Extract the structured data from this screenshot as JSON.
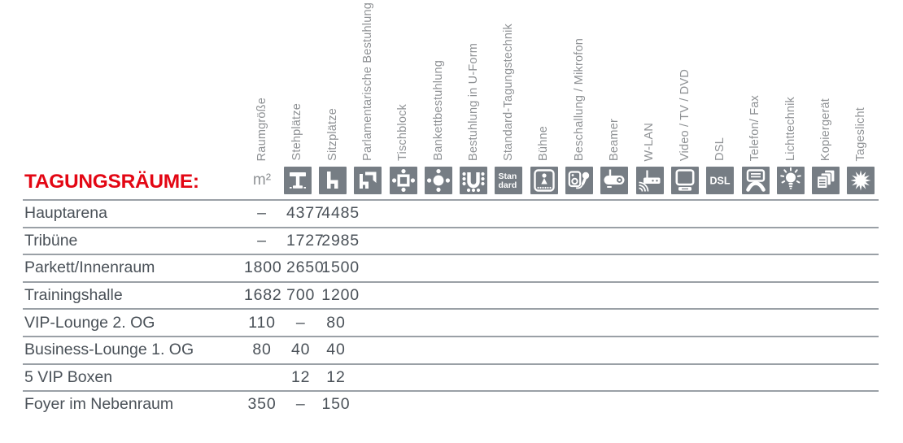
{
  "title": "TAGUNGSRÄUME:",
  "table": {
    "unit_header": "m²",
    "columns": [
      {
        "label": "Raumgröße",
        "icon": "area-unit"
      },
      {
        "label": "Stehplätze",
        "icon": "standing-table"
      },
      {
        "label": "Sitzplätze",
        "icon": "chair"
      },
      {
        "label": "Parlamentarische Bestuhlung",
        "icon": "chair-desk"
      },
      {
        "label": "Tischblock",
        "icon": "table-block"
      },
      {
        "label": "Bankettbestuhlung",
        "icon": "banquet-table"
      },
      {
        "label": "Bestuhlung in U-Form",
        "icon": "u-form"
      },
      {
        "label": "Standard-Tagungstechnik",
        "icon": "standard-badge",
        "icon_text_line1": "Stan",
        "icon_text_line2": "dard"
      },
      {
        "label": "Bühne",
        "icon": "stage"
      },
      {
        "label": "Beschallung / Mikrofon",
        "icon": "speaker-microphone"
      },
      {
        "label": "Beamer",
        "icon": "projector"
      },
      {
        "label": "W-LAN",
        "icon": "wifi-router"
      },
      {
        "label": "Video / TV / DVD",
        "icon": "monitor"
      },
      {
        "label": "DSL",
        "icon": "dsl-badge",
        "icon_text": "DSL"
      },
      {
        "label": "Telefon/ Fax",
        "icon": "fax-phone"
      },
      {
        "label": "Lichttechnik",
        "icon": "light-bulb"
      },
      {
        "label": "Kopiergerät",
        "icon": "copier"
      },
      {
        "label": "Tageslicht",
        "icon": "sun"
      }
    ],
    "rows": [
      {
        "name": "Hauptarena",
        "values": [
          "–",
          "4377",
          "4485"
        ]
      },
      {
        "name": "Tribüne",
        "values": [
          "–",
          "1727",
          "2985"
        ]
      },
      {
        "name": "Parkett/Innenraum",
        "values": [
          "1800",
          "2650",
          "1500"
        ]
      },
      {
        "name": "Trainingshalle",
        "values": [
          "1682",
          "700",
          "1200"
        ]
      },
      {
        "name": "VIP-Lounge 2. OG",
        "values": [
          "110",
          "–",
          "80"
        ]
      },
      {
        "name": "Business-Lounge 1. OG",
        "values": [
          "80",
          "40",
          "40"
        ]
      },
      {
        "name": "5 VIP Boxen",
        "values": [
          "",
          "12",
          "12"
        ]
      },
      {
        "name": "Foyer im Nebenraum",
        "values": [
          "350",
          "–",
          "150"
        ]
      }
    ]
  },
  "colors": {
    "title_red": "#e30613",
    "icon_gray": "#767d84",
    "text_dark": "#4a5158",
    "label_gray": "#8f9295",
    "rule_gray": "#9aa0a6"
  }
}
